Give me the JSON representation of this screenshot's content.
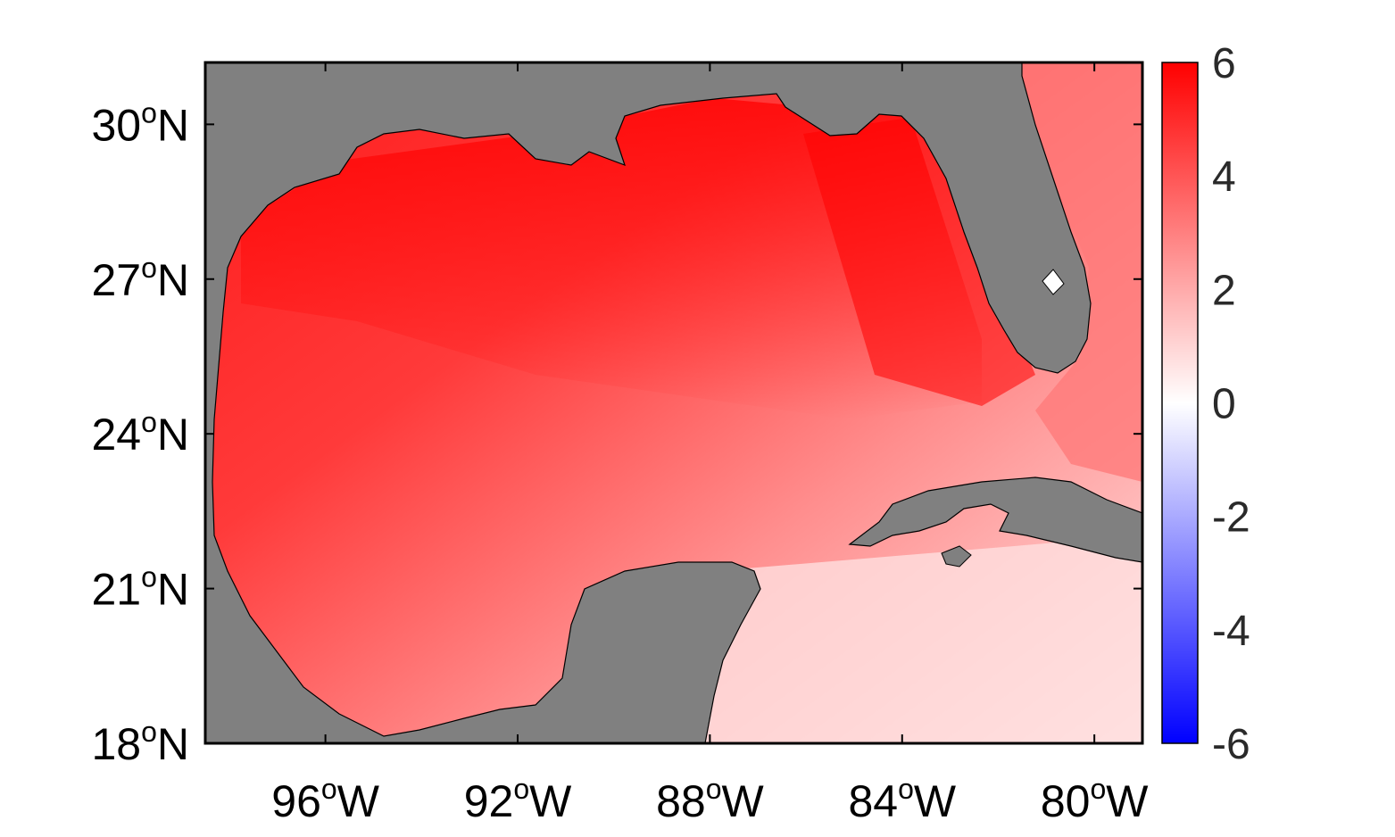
{
  "map": {
    "region": "Gulf of Mexico",
    "lon_range": [
      -98.5,
      -79.0
    ],
    "lat_range": [
      18.0,
      31.2
    ],
    "land_color": "#808080",
    "coastline_color": "#000000",
    "y_ticks": [
      {
        "deg": "30",
        "sup": "o",
        "hemi": "N"
      },
      {
        "deg": "27",
        "sup": "o",
        "hemi": "N"
      },
      {
        "deg": "24",
        "sup": "o",
        "hemi": "N"
      },
      {
        "deg": "21",
        "sup": "o",
        "hemi": "N"
      },
      {
        "deg": "18",
        "sup": "o",
        "hemi": "N"
      }
    ],
    "x_ticks": [
      {
        "deg": "96",
        "sup": "o",
        "hemi": "W"
      },
      {
        "deg": "92",
        "sup": "o",
        "hemi": "W"
      },
      {
        "deg": "88",
        "sup": "o",
        "hemi": "W"
      },
      {
        "deg": "84",
        "sup": "o",
        "hemi": "W"
      },
      {
        "deg": "80",
        "sup": "o",
        "hemi": "W"
      }
    ]
  },
  "colorbar": {
    "range": [
      -6,
      6
    ],
    "colors": {
      "max": "#ff0000",
      "zero": "#ffffff",
      "min": "#0000ff"
    },
    "labels": [
      "6",
      "4",
      "2",
      "0",
      "-2",
      "-4",
      "-6"
    ]
  }
}
